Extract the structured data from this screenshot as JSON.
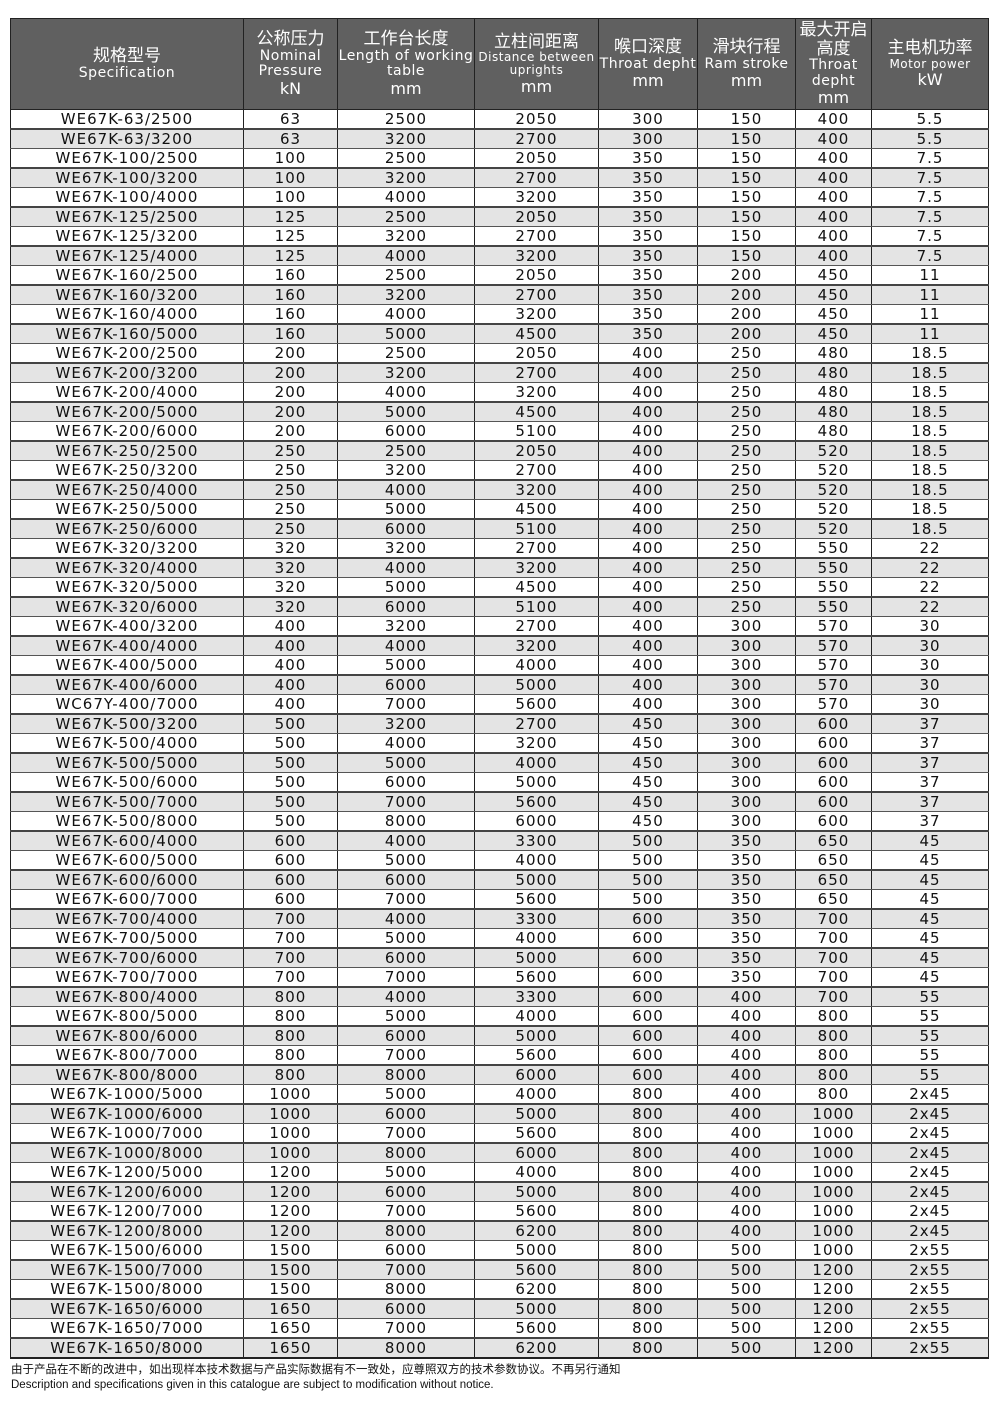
{
  "headers": [
    {
      "zh": "规格型号",
      "en": "Specification",
      "unit": ""
    },
    {
      "zh": "公称压力",
      "en": "Nominal Pressure",
      "unit": "kN"
    },
    {
      "zh": "工作台长度",
      "en": "Length of working table",
      "unit": "mm"
    },
    {
      "zh": "立柱间距离",
      "en": "Distance between uprights",
      "unit": "mm"
    },
    {
      "zh": "喉口深度",
      "en": "Throat depht",
      "unit": "mm"
    },
    {
      "zh": "滑块行程",
      "en": "Ram stroke",
      "unit": "mm"
    },
    {
      "zh": "最大开启高度",
      "en": "Throat depht",
      "unit": "mm"
    },
    {
      "zh": "主电机功率",
      "en": "Motor power",
      "unit": "kW"
    }
  ],
  "rows": [
    [
      "WE67K-63/2500",
      "63",
      "2500",
      "2050",
      "300",
      "150",
      "400",
      "5.5"
    ],
    [
      "WE67K-63/3200",
      "63",
      "3200",
      "2700",
      "300",
      "150",
      "400",
      "5.5"
    ],
    [
      "WE67K-100/2500",
      "100",
      "2500",
      "2050",
      "350",
      "150",
      "400",
      "7.5"
    ],
    [
      "WE67K-100/3200",
      "100",
      "3200",
      "2700",
      "350",
      "150",
      "400",
      "7.5"
    ],
    [
      "WE67K-100/4000",
      "100",
      "4000",
      "3200",
      "350",
      "150",
      "400",
      "7.5"
    ],
    [
      "WE67K-125/2500",
      "125",
      "2500",
      "2050",
      "350",
      "150",
      "400",
      "7.5"
    ],
    [
      "WE67K-125/3200",
      "125",
      "3200",
      "2700",
      "350",
      "150",
      "400",
      "7.5"
    ],
    [
      "WE67K-125/4000",
      "125",
      "4000",
      "3200",
      "350",
      "150",
      "400",
      "7.5"
    ],
    [
      "WE67K-160/2500",
      "160",
      "2500",
      "2050",
      "350",
      "200",
      "450",
      "11"
    ],
    [
      "WE67K-160/3200",
      "160",
      "3200",
      "2700",
      "350",
      "200",
      "450",
      "11"
    ],
    [
      "WE67K-160/4000",
      "160",
      "4000",
      "3200",
      "350",
      "200",
      "450",
      "11"
    ],
    [
      "WE67K-160/5000",
      "160",
      "5000",
      "4500",
      "350",
      "200",
      "450",
      "11"
    ],
    [
      "WE67K-200/2500",
      "200",
      "2500",
      "2050",
      "400",
      "250",
      "480",
      "18.5"
    ],
    [
      "WE67K-200/3200",
      "200",
      "3200",
      "2700",
      "400",
      "250",
      "480",
      "18.5"
    ],
    [
      "WE67K-200/4000",
      "200",
      "4000",
      "3200",
      "400",
      "250",
      "480",
      "18.5"
    ],
    [
      "WE67K-200/5000",
      "200",
      "5000",
      "4500",
      "400",
      "250",
      "480",
      "18.5"
    ],
    [
      "WE67K-200/6000",
      "200",
      "6000",
      "5100",
      "400",
      "250",
      "480",
      "18.5"
    ],
    [
      "WE67K-250/2500",
      "250",
      "2500",
      "2050",
      "400",
      "250",
      "520",
      "18.5"
    ],
    [
      "WE67K-250/3200",
      "250",
      "3200",
      "2700",
      "400",
      "250",
      "520",
      "18.5"
    ],
    [
      "WE67K-250/4000",
      "250",
      "4000",
      "3200",
      "400",
      "250",
      "520",
      "18.5"
    ],
    [
      "WE67K-250/5000",
      "250",
      "5000",
      "4500",
      "400",
      "250",
      "520",
      "18.5"
    ],
    [
      "WE67K-250/6000",
      "250",
      "6000",
      "5100",
      "400",
      "250",
      "520",
      "18.5"
    ],
    [
      "WE67K-320/3200",
      "320",
      "3200",
      "2700",
      "400",
      "250",
      "550",
      "22"
    ],
    [
      "WE67K-320/4000",
      "320",
      "4000",
      "3200",
      "400",
      "250",
      "550",
      "22"
    ],
    [
      "WE67K-320/5000",
      "320",
      "5000",
      "4500",
      "400",
      "250",
      "550",
      "22"
    ],
    [
      "WE67K-320/6000",
      "320",
      "6000",
      "5100",
      "400",
      "250",
      "550",
      "22"
    ],
    [
      "WE67K-400/3200",
      "400",
      "3200",
      "2700",
      "400",
      "300",
      "570",
      "30"
    ],
    [
      "WE67K-400/4000",
      "400",
      "4000",
      "3200",
      "400",
      "300",
      "570",
      "30"
    ],
    [
      "WE67K-400/5000",
      "400",
      "5000",
      "4000",
      "400",
      "300",
      "570",
      "30"
    ],
    [
      "WE67K-400/6000",
      "400",
      "6000",
      "5000",
      "400",
      "300",
      "570",
      "30"
    ],
    [
      "WC67Y-400/7000",
      "400",
      "7000",
      "5600",
      "400",
      "300",
      "570",
      "30"
    ],
    [
      "WE67K-500/3200",
      "500",
      "3200",
      "2700",
      "450",
      "300",
      "600",
      "37"
    ],
    [
      "WE67K-500/4000",
      "500",
      "4000",
      "3200",
      "450",
      "300",
      "600",
      "37"
    ],
    [
      "WE67K-500/5000",
      "500",
      "5000",
      "4000",
      "450",
      "300",
      "600",
      "37"
    ],
    [
      "WE67K-500/6000",
      "500",
      "6000",
      "5000",
      "450",
      "300",
      "600",
      "37"
    ],
    [
      "WE67K-500/7000",
      "500",
      "7000",
      "5600",
      "450",
      "300",
      "600",
      "37"
    ],
    [
      "WE67K-500/8000",
      "500",
      "8000",
      "6000",
      "450",
      "300",
      "600",
      "37"
    ],
    [
      "WE67K-600/4000",
      "600",
      "4000",
      "3300",
      "500",
      "350",
      "650",
      "45"
    ],
    [
      "WE67K-600/5000",
      "600",
      "5000",
      "4000",
      "500",
      "350",
      "650",
      "45"
    ],
    [
      "WE67K-600/6000",
      "600",
      "6000",
      "5000",
      "500",
      "350",
      "650",
      "45"
    ],
    [
      "WE67K-600/7000",
      "600",
      "7000",
      "5600",
      "500",
      "350",
      "650",
      "45"
    ],
    [
      "WE67K-700/4000",
      "700",
      "4000",
      "3300",
      "600",
      "350",
      "700",
      "45"
    ],
    [
      "WE67K-700/5000",
      "700",
      "5000",
      "4000",
      "600",
      "350",
      "700",
      "45"
    ],
    [
      "WE67K-700/6000",
      "700",
      "6000",
      "5000",
      "600",
      "350",
      "700",
      "45"
    ],
    [
      "WE67K-700/7000",
      "700",
      "7000",
      "5600",
      "600",
      "350",
      "700",
      "45"
    ],
    [
      "WE67K-800/4000",
      "800",
      "4000",
      "3300",
      "600",
      "400",
      "700",
      "55"
    ],
    [
      "WE67K-800/5000",
      "800",
      "5000",
      "4000",
      "600",
      "400",
      "800",
      "55"
    ],
    [
      "WE67K-800/6000",
      "800",
      "6000",
      "5000",
      "600",
      "400",
      "800",
      "55"
    ],
    [
      "WE67K-800/7000",
      "800",
      "7000",
      "5600",
      "600",
      "400",
      "800",
      "55"
    ],
    [
      "WE67K-800/8000",
      "800",
      "8000",
      "6000",
      "600",
      "400",
      "800",
      "55"
    ],
    [
      "WE67K-1000/5000",
      "1000",
      "5000",
      "4000",
      "800",
      "400",
      "800",
      "2x45"
    ],
    [
      "WE67K-1000/6000",
      "1000",
      "6000",
      "5000",
      "800",
      "400",
      "1000",
      "2x45"
    ],
    [
      "WE67K-1000/7000",
      "1000",
      "7000",
      "5600",
      "800",
      "400",
      "1000",
      "2x45"
    ],
    [
      "WE67K-1000/8000",
      "1000",
      "8000",
      "6000",
      "800",
      "400",
      "1000",
      "2x45"
    ],
    [
      "WE67K-1200/5000",
      "1200",
      "5000",
      "4000",
      "800",
      "400",
      "1000",
      "2x45"
    ],
    [
      "WE67K-1200/6000",
      "1200",
      "6000",
      "5000",
      "800",
      "400",
      "1000",
      "2x45"
    ],
    [
      "WE67K-1200/7000",
      "1200",
      "7000",
      "5600",
      "800",
      "400",
      "1000",
      "2x45"
    ],
    [
      "WE67K-1200/8000",
      "1200",
      "8000",
      "6200",
      "800",
      "400",
      "1000",
      "2x45"
    ],
    [
      "WE67K-1500/6000",
      "1500",
      "6000",
      "5000",
      "800",
      "500",
      "1000",
      "2x55"
    ],
    [
      "WE67K-1500/7000",
      "1500",
      "7000",
      "5600",
      "800",
      "500",
      "1200",
      "2x55"
    ],
    [
      "WE67K-1500/8000",
      "1500",
      "8000",
      "6200",
      "800",
      "500",
      "1200",
      "2x55"
    ],
    [
      "WE67K-1650/6000",
      "1650",
      "6000",
      "5000",
      "800",
      "500",
      "1200",
      "2x55"
    ],
    [
      "WE67K-1650/7000",
      "1650",
      "7000",
      "5600",
      "800",
      "500",
      "1200",
      "2x55"
    ],
    [
      "WE67K-1650/8000",
      "1650",
      "8000",
      "6200",
      "800",
      "500",
      "1200",
      "2x55"
    ]
  ],
  "footnote": {
    "zh": "由于产品在不断的改进中，如出现样本技术数据与产品实际数据有不一致处，应尊照双方的技术参数协议。不再另行通知",
    "en": "Description and specifications given in this catalogue are subject to modification without notice."
  },
  "colors": {
    "header_bg": "#606060",
    "stripe": "#e4e4e4"
  }
}
